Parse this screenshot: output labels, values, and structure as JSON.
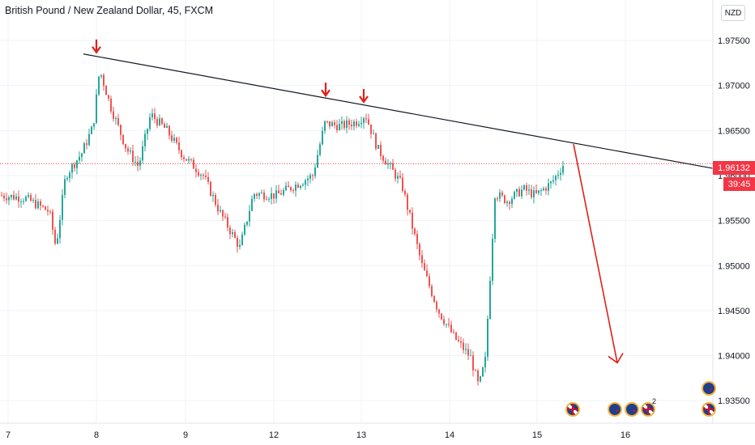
{
  "header": {
    "title": "British Pound / New Zealand Dollar, 45, FXCM"
  },
  "currency_label": "NZD",
  "last_price": "1.96132",
  "countdown": "39:45",
  "colors": {
    "up": "#26a69a",
    "down": "#ef5350",
    "trendline": "#131722",
    "arrow": "#e0211b",
    "price_tag": "#f23645",
    "grid": "#f0f3fa"
  },
  "events": [
    {
      "icon": "uk-flag-icon",
      "label": ""
    },
    {
      "icon": "nz-flag-icon",
      "label": ""
    },
    {
      "icon": "nz-flag-icon",
      "label": ""
    },
    {
      "icon": "uk-flag-icon",
      "label": "2"
    },
    {
      "icon": "nz-flag-icon",
      "label": ""
    },
    {
      "icon": "uk-flag-icon",
      "label": ""
    }
  ],
  "chart_data": {
    "type": "candlestick",
    "title": "British Pound / New Zealand Dollar, 45, FXCM",
    "x_ticks": [
      "7",
      "8",
      "9",
      "12",
      "13",
      "14",
      "15",
      "16"
    ],
    "y_ticks": [
      "1.97500",
      "1.97000",
      "1.96500",
      "1.96000",
      "1.95500",
      "1.95000",
      "1.94500",
      "1.94000",
      "1.93500"
    ],
    "ylim": [
      1.9325,
      1.9795
    ],
    "last_price": 1.96132,
    "grid": true,
    "series": [
      {
        "x_tick": "7",
        "close": 1.9582
      },
      {
        "x_tick": "8",
        "close": 1.9718
      },
      {
        "x_tick": "9",
        "close": 1.9622
      },
      {
        "x_tick": "12",
        "close": 1.9583
      },
      {
        "x_tick": "13",
        "close": 1.9665
      },
      {
        "x_tick": "14",
        "close": 1.938
      },
      {
        "x_tick": "15",
        "close": 1.959
      }
    ],
    "annotations": [
      {
        "type": "resistance-trendline",
        "from_price": 1.9735,
        "to_price": 1.9608
      },
      {
        "type": "arrow-down",
        "at": "8",
        "price": 1.9735
      },
      {
        "type": "arrow-down",
        "at": "12",
        "price": 1.9687
      },
      {
        "type": "arrow-down",
        "at": "13",
        "price": 1.968
      },
      {
        "type": "projection-arrow",
        "from_price": 1.9635,
        "to_price": 1.9392
      }
    ]
  }
}
